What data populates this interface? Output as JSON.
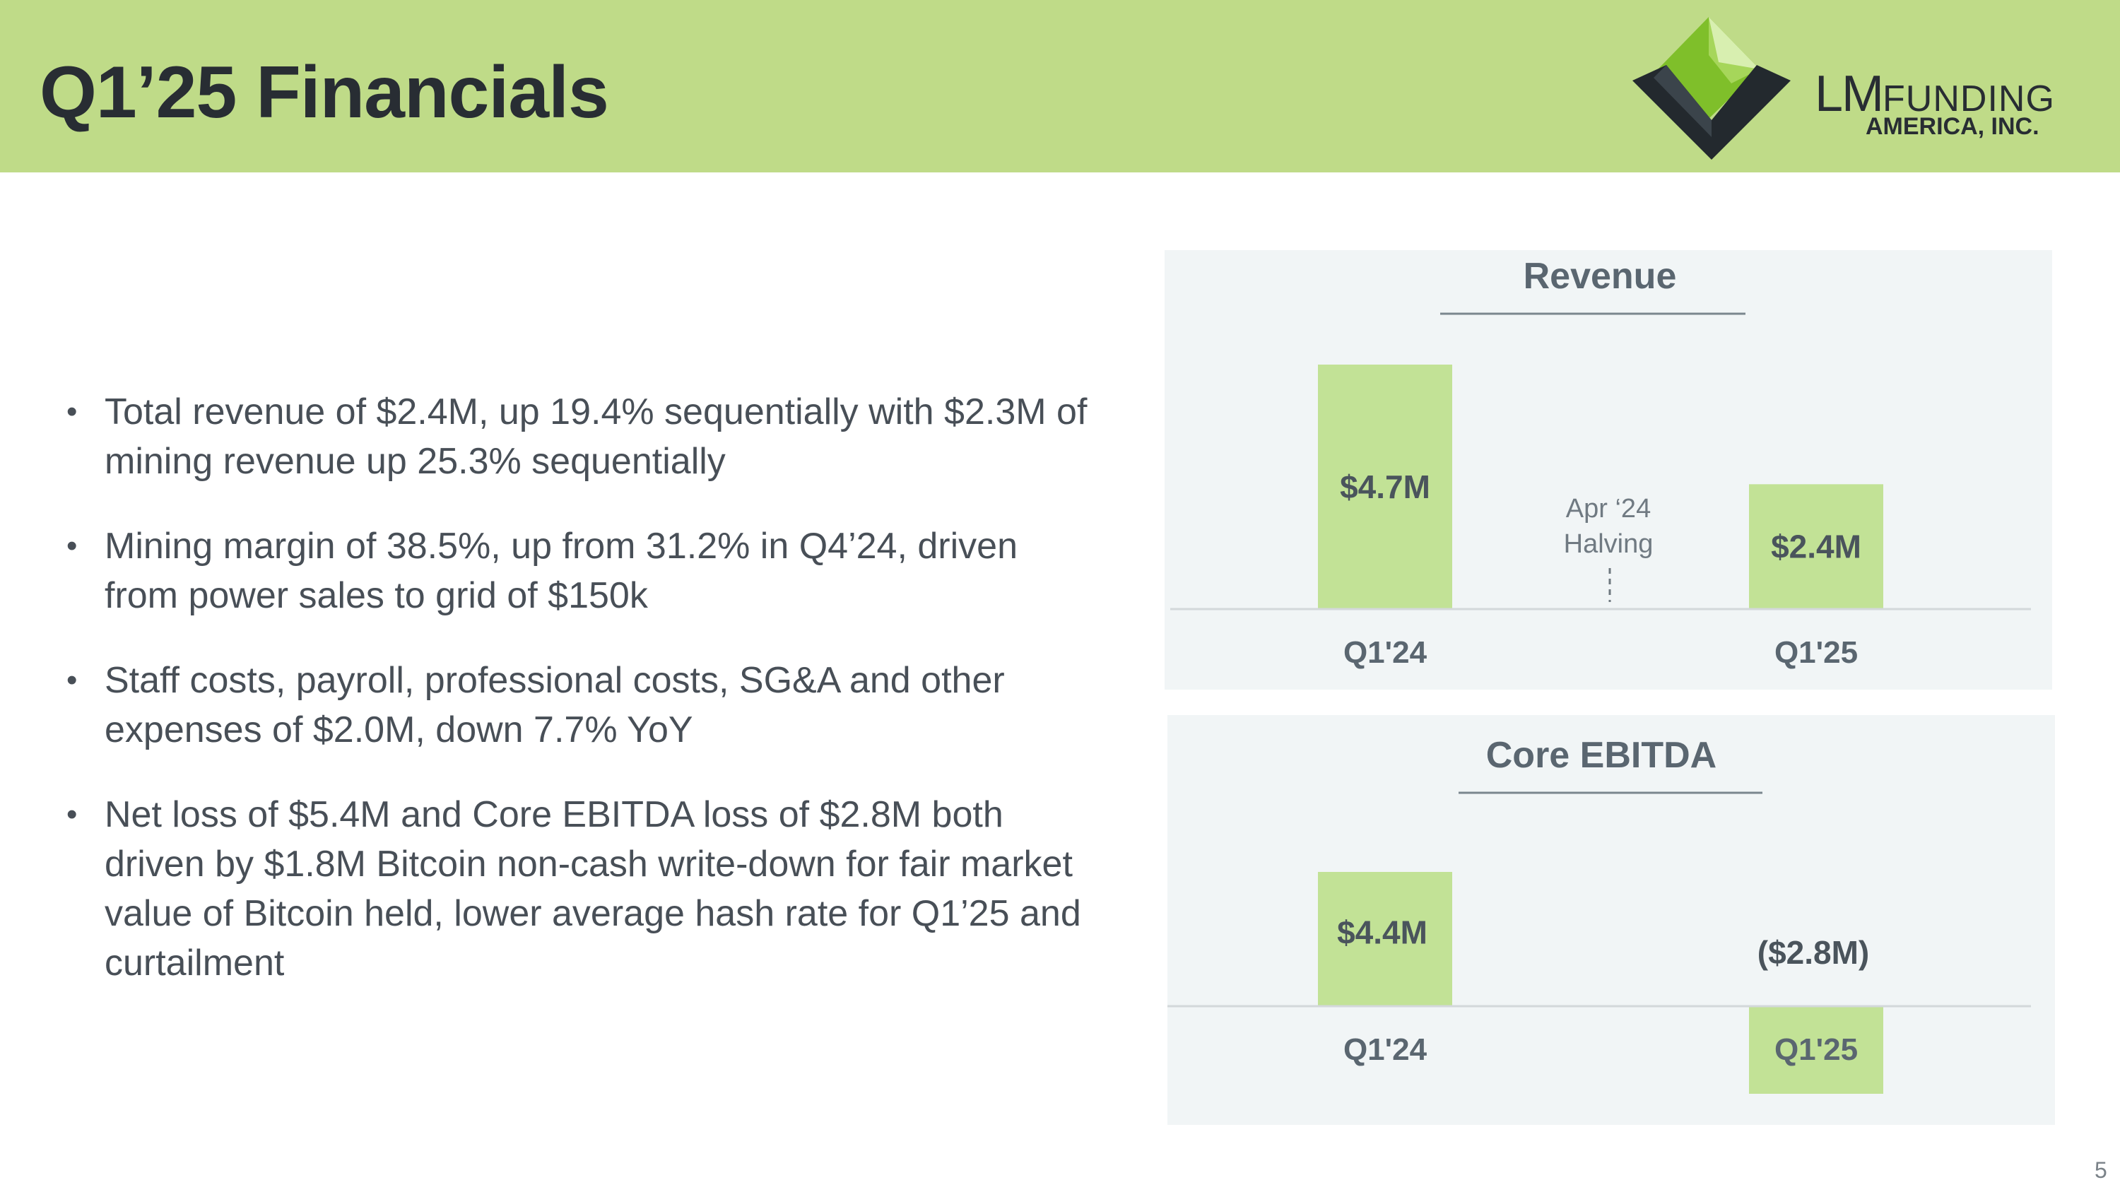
{
  "slide": {
    "title": "Q1’25 Financials",
    "page_number": "5",
    "header_color": "#bfdb88"
  },
  "logo": {
    "name_lm": "LM",
    "name_funding": "FUNDING",
    "name_line2": "AMERICA, INC.",
    "icon": "chevron-diamond-logo-icon"
  },
  "bullets": [
    "Total revenue of $2.4M, up 19.4% sequentially with $2.3M of mining revenue up 25.3% sequentially",
    "Mining margin of 38.5%, up from 31.2% in Q4’24, driven from power sales to grid of $150k",
    "Staff costs, payroll, professional costs, SG&A and other expenses of $2.0M, down 7.7% YoY",
    "Net loss of $5.4M and Core EBITDA loss of $2.8M both driven by $1.8M Bitcoin non-cash write-down for fair market value of Bitcoin held, lower average hash rate for Q1’25 and curtailment"
  ],
  "chart_data": [
    {
      "type": "bar",
      "title": "Revenue",
      "categories": [
        "Q1'24",
        "Q1'25"
      ],
      "values": [
        4.7,
        2.4
      ],
      "data_labels": [
        "$4.7M",
        "$2.4M"
      ],
      "annotation": {
        "line1": "Apr ‘24",
        "line2": "Halving",
        "between": [
          "Q1'24",
          "Q1'25"
        ]
      },
      "ylim": [
        0,
        4.7
      ],
      "bar_color": "#c2e296",
      "grid": false,
      "legend": "none"
    },
    {
      "type": "bar",
      "title": "Core EBITDA",
      "categories": [
        "Q1'24",
        "Q1'25"
      ],
      "values": [
        4.4,
        -2.8
      ],
      "data_labels": [
        "$4.4M",
        "($2.8M)"
      ],
      "ylim": [
        -2.8,
        4.4
      ],
      "bar_color": "#c2e296",
      "grid": false,
      "legend": "none"
    }
  ]
}
